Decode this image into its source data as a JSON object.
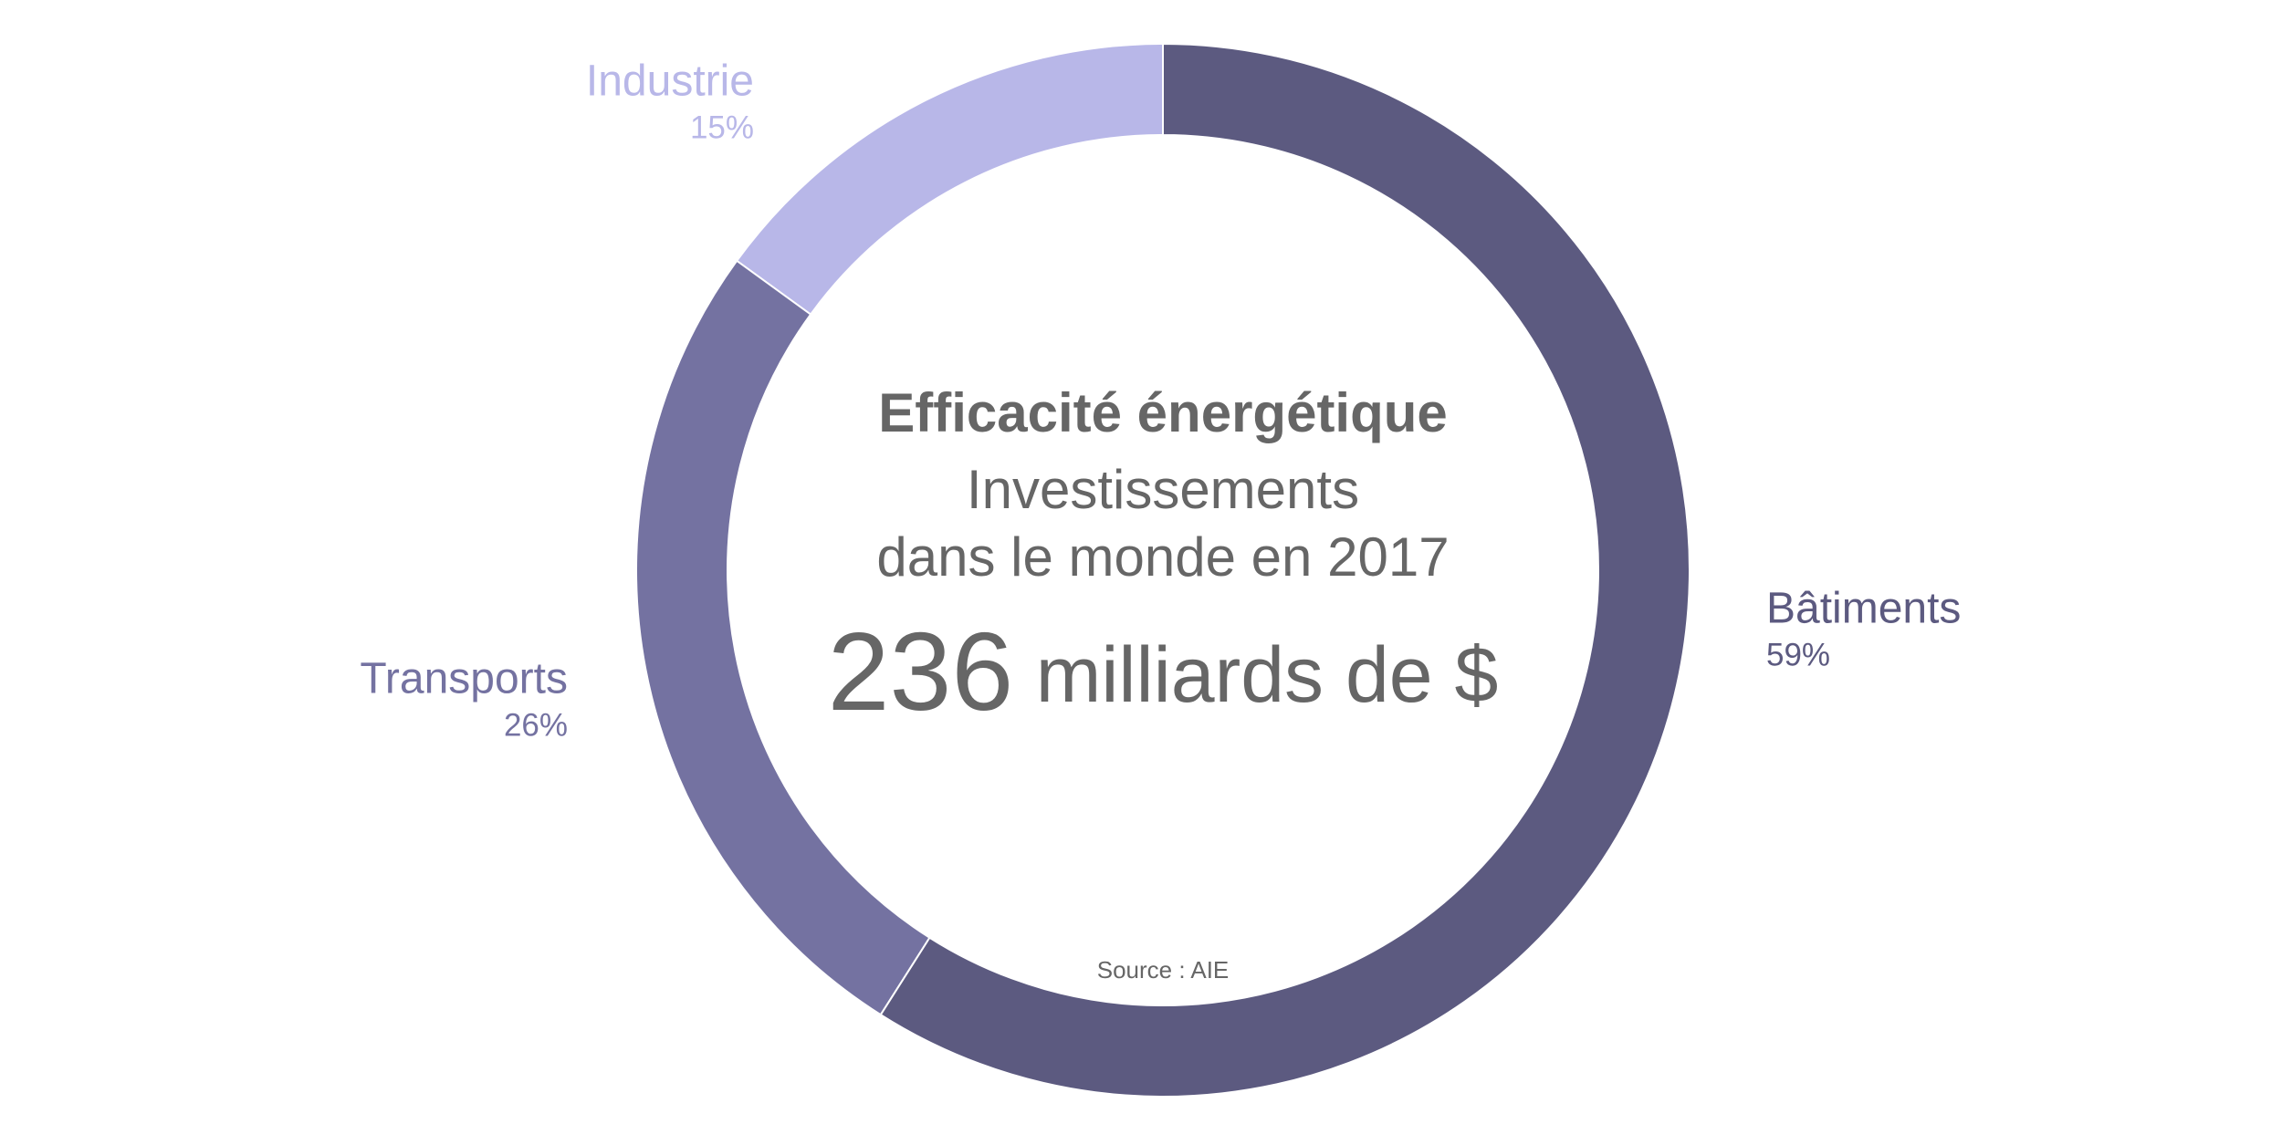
{
  "chart_data": {
    "type": "donut",
    "title": "Efficacité énergétique",
    "subtitle": [
      "Investissements",
      "dans le monde en 2017"
    ],
    "total": 236,
    "total_unit": "milliards de $",
    "source": "Source : AIE",
    "categories": [
      "Bâtiments",
      "Transports",
      "Industrie"
    ],
    "values": [
      59,
      26,
      15
    ],
    "value_labels": [
      "59%",
      "26%",
      "15%"
    ],
    "colors": [
      "#5c5a80",
      "#7472a1",
      "#b8b7e8"
    ]
  }
}
